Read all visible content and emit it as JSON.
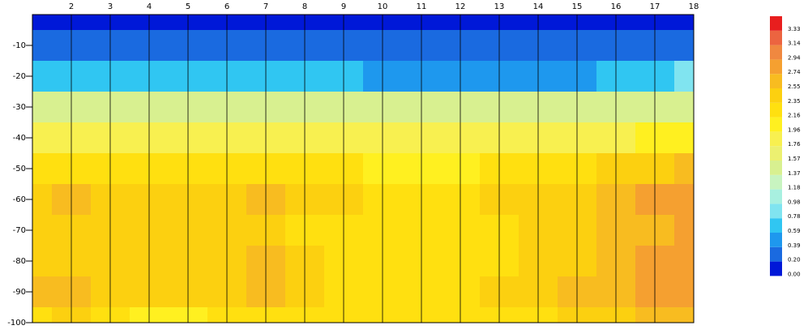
{
  "chart_data": {
    "type": "contour",
    "x": [
      1,
      2,
      3,
      4,
      5,
      6,
      7,
      8,
      9,
      10,
      11,
      12,
      13,
      14,
      15,
      16,
      17,
      18
    ],
    "y": [
      0,
      -10,
      -20,
      -30,
      -40,
      -50,
      -60,
      -70,
      -80,
      -90,
      -100
    ],
    "z": [
      [
        0.05,
        0.05,
        0.05,
        0.05,
        0.08,
        0.15,
        0.08,
        0.05,
        0.08,
        0.05,
        0.05,
        0.05,
        0.05,
        0.05,
        0.05,
        0.05,
        0.05,
        0.05
      ],
      [
        0.3,
        0.32,
        0.28,
        0.25,
        0.22,
        0.25,
        0.3,
        0.28,
        0.3,
        0.28,
        0.25,
        0.28,
        0.28,
        0.25,
        0.25,
        0.22,
        0.2,
        0.3
      ],
      [
        0.7,
        0.75,
        0.65,
        0.6,
        0.62,
        0.65,
        0.7,
        0.6,
        0.6,
        0.55,
        0.52,
        0.55,
        0.55,
        0.52,
        0.55,
        0.6,
        0.7,
        0.8
      ],
      [
        1.45,
        1.45,
        1.4,
        1.4,
        1.38,
        1.4,
        1.42,
        1.4,
        1.38,
        1.38,
        1.4,
        1.42,
        1.4,
        1.4,
        1.42,
        1.45,
        1.5,
        1.55
      ],
      [
        1.85,
        1.9,
        1.8,
        1.82,
        1.85,
        1.85,
        1.82,
        1.8,
        1.9,
        1.8,
        1.8,
        1.8,
        1.8,
        1.82,
        1.85,
        1.9,
        2.0,
        2.05
      ],
      [
        2.25,
        2.3,
        2.25,
        2.2,
        2.2,
        2.2,
        2.3,
        2.2,
        2.2,
        2.15,
        2.15,
        2.15,
        2.2,
        2.25,
        2.3,
        2.35,
        2.45,
        2.6
      ],
      [
        2.45,
        2.6,
        2.45,
        2.4,
        2.4,
        2.45,
        2.55,
        2.4,
        2.35,
        2.3,
        2.3,
        2.3,
        2.35,
        2.4,
        2.5,
        2.6,
        2.75,
        2.85
      ],
      [
        2.4,
        2.5,
        2.4,
        2.35,
        2.35,
        2.45,
        2.4,
        2.3,
        2.25,
        2.25,
        2.25,
        2.25,
        2.3,
        2.35,
        2.45,
        2.55,
        2.7,
        2.8
      ],
      [
        2.45,
        2.5,
        2.4,
        2.35,
        2.35,
        2.4,
        2.55,
        2.35,
        2.25,
        2.2,
        2.2,
        2.25,
        2.3,
        2.4,
        2.5,
        2.6,
        2.75,
        2.85
      ],
      [
        2.55,
        2.7,
        2.5,
        2.45,
        2.4,
        2.45,
        2.6,
        2.4,
        2.3,
        2.25,
        2.25,
        2.3,
        2.35,
        2.45,
        2.55,
        2.6,
        2.75,
        2.9
      ],
      [
        2.3,
        2.35,
        2.25,
        2.15,
        2.15,
        2.2,
        2.3,
        2.2,
        2.2,
        2.2,
        2.2,
        2.2,
        2.25,
        2.3,
        2.35,
        2.45,
        2.55,
        2.7
      ]
    ],
    "xlim": [
      1,
      18
    ],
    "ylim": [
      -100,
      0
    ],
    "xticks": [
      2,
      3,
      4,
      5,
      6,
      7,
      8,
      9,
      10,
      11,
      12,
      13,
      14,
      15,
      16,
      17,
      18
    ],
    "yticks": [
      -10,
      -20,
      -30,
      -40,
      -50,
      -60,
      -70,
      -80,
      -90,
      -100
    ],
    "grid": true,
    "colorbar": {
      "levels": [
        {
          "value": 0,
          "label": "0.00"
        },
        {
          "value": 0.2,
          "label": "0.20"
        },
        {
          "value": 0.39,
          "label": "0.39"
        },
        {
          "value": 0.59,
          "label": "0.59"
        },
        {
          "value": 0.78,
          "label": "0.78"
        },
        {
          "value": 0.98,
          "label": "0.98"
        },
        {
          "value": 1.18,
          "label": "1.18"
        },
        {
          "value": 1.37,
          "label": "1.37"
        },
        {
          "value": 1.57,
          "label": "1.57"
        },
        {
          "value": 1.76,
          "label": "1.76"
        },
        {
          "value": 1.96,
          "label": "1.96"
        },
        {
          "value": 2.16,
          "label": "2.16"
        },
        {
          "value": 2.35,
          "label": "2.35"
        },
        {
          "value": 2.55,
          "label": "2.55"
        },
        {
          "value": 2.74,
          "label": "2.74"
        },
        {
          "value": 2.94,
          "label": "2.94"
        },
        {
          "value": 3.14,
          "label": "3.14"
        },
        {
          "value": 3.33,
          "label": "3.33"
        }
      ],
      "colors": [
        "#0018d8",
        "#1a6ae0",
        "#1e98ee",
        "#30c6f2",
        "#80e4f0",
        "#a8f0e0",
        "#c8f4c0",
        "#d8f090",
        "#ecf070",
        "#f8f050",
        "#fff020",
        "#ffe010",
        "#fcd010",
        "#f8bc20",
        "#f5a030",
        "#f08840",
        "#ec6440",
        "#e81e1e"
      ]
    }
  }
}
